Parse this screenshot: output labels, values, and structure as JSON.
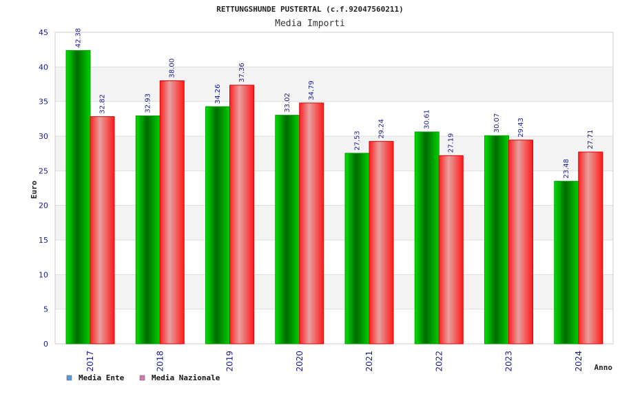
{
  "chart_data": {
    "type": "bar",
    "title": "RETTUNGSHUNDE PUSTERTAL (c.f.92047560211)",
    "subtitle": "Media Importi",
    "xlabel": "Anno",
    "ylabel": "Euro",
    "ylim": [
      0,
      45
    ],
    "yticks": [
      0,
      5,
      10,
      15,
      20,
      25,
      30,
      35,
      40,
      45
    ],
    "categories": [
      "2017",
      "2018",
      "2019",
      "2020",
      "2021",
      "2022",
      "2023",
      "2024"
    ],
    "series": [
      {
        "name": "Media Ente",
        "values": [
          42.38,
          32.93,
          34.26,
          33.02,
          27.53,
          30.61,
          30.07,
          23.48
        ],
        "labels": [
          "42.38",
          "32.93",
          "34.26",
          "33.02",
          "27.53",
          "30.61",
          "30.07",
          "23.48"
        ],
        "color": "#00c000",
        "legend_color": "#5b9bd5"
      },
      {
        "name": "Media Nazionale",
        "values": [
          32.82,
          38.0,
          37.36,
          34.79,
          29.24,
          27.19,
          29.43,
          27.71
        ],
        "labels": [
          "32.82",
          "38.00",
          "37.36",
          "34.79",
          "29.24",
          "27.19",
          "29.43",
          "27.71"
        ],
        "color": "#ff2020",
        "legend_color": "#d977b6"
      }
    ],
    "grid": true,
    "legend_position": "bottom-left"
  }
}
